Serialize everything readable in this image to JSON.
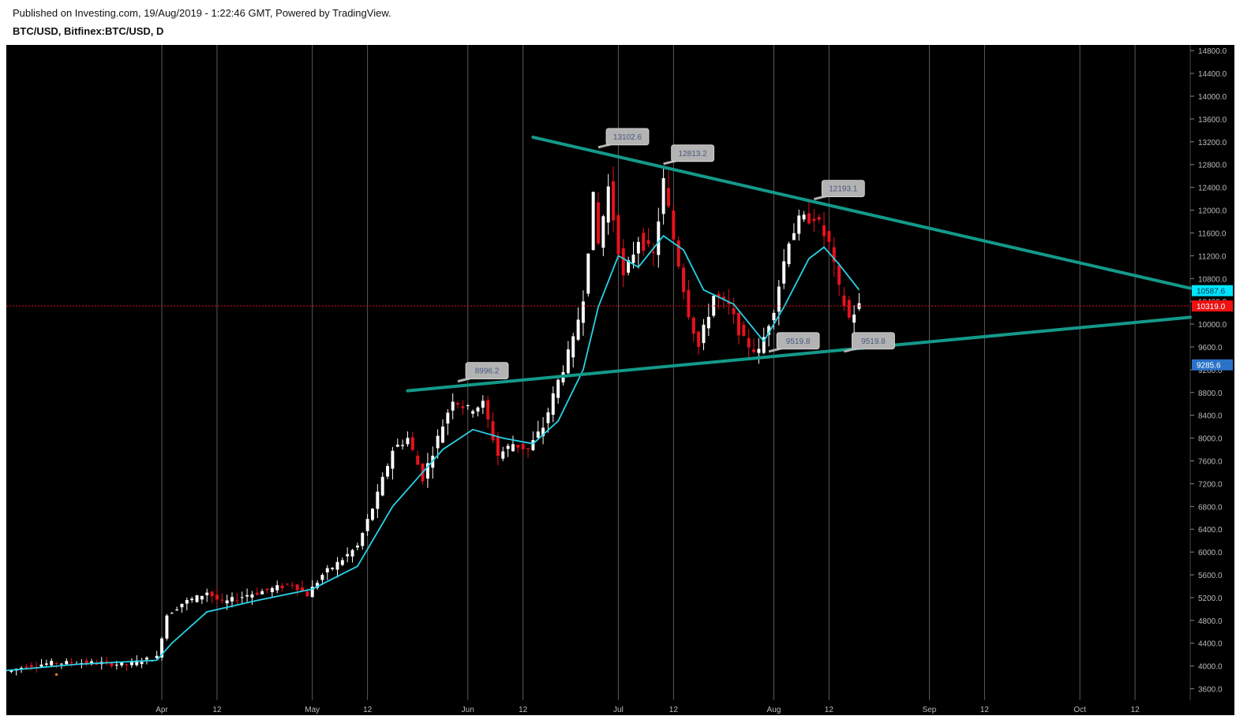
{
  "header": {
    "published": "Published on Investing.com, 19/Aug/2019 - 1:22:46 GMT, Powered by TradingView.",
    "symbol": "BTC/USD, Bitfinex:BTC/USD, D"
  },
  "colors": {
    "background": "#000000",
    "up_candle": "#ffffff",
    "down_candle": "#e8121c",
    "moving_average": "#27d3e6",
    "trendline": "#14998a",
    "price_line": "#e8121c",
    "ma_badge": "#00e5ff",
    "price_badge": "#ee1111",
    "support_badge": "#2a72c8",
    "callout_fill": "#b3b3b3",
    "callout_text": "#4a5a80",
    "grid": "#5a5a5a",
    "axis_text": "#bbbbbb"
  },
  "chart_data": {
    "type": "candlestick",
    "title": "BTC/USD, Bitfinex:BTC/USD, D",
    "ylim": [
      3400,
      14900
    ],
    "y_ticks": [
      3600,
      4000,
      4400,
      4800,
      5200,
      5600,
      6000,
      6400,
      6800,
      7200,
      7600,
      8000,
      8400,
      8800,
      9200,
      9600,
      10000,
      10400,
      10800,
      11200,
      11600,
      12000,
      12400,
      12800,
      13200,
      13600,
      14000,
      14400,
      14800
    ],
    "y_tick_labels": [
      "3600.0",
      "4000.0",
      "4400.0",
      "4800.0",
      "5200.0",
      "5600.0",
      "6000.0",
      "6400.0",
      "6800.0",
      "7200.0",
      "7600.0",
      "8000.0",
      "8400.0",
      "8800.0",
      "9200.0",
      "9600.0",
      "10000.0",
      "10400.0",
      "10800.0",
      "11200.0",
      "11600.0",
      "12000.0",
      "12400.0",
      "12800.0",
      "13200.0",
      "13600.0",
      "14000.0",
      "14400.0",
      "14800.0"
    ],
    "x_start": "2019-03-01",
    "x_end": "2019-10-23",
    "x_ticks": [
      {
        "date": "2019-04-01",
        "label": "Apr"
      },
      {
        "date": "2019-04-12",
        "label": "12"
      },
      {
        "date": "2019-05-01",
        "label": "May"
      },
      {
        "date": "2019-05-12",
        "label": "12"
      },
      {
        "date": "2019-06-01",
        "label": "Jun"
      },
      {
        "date": "2019-06-12",
        "label": "12"
      },
      {
        "date": "2019-07-01",
        "label": "Jul"
      },
      {
        "date": "2019-07-12",
        "label": "12"
      },
      {
        "date": "2019-08-01",
        "label": "Aug"
      },
      {
        "date": "2019-08-12",
        "label": "12"
      },
      {
        "date": "2019-09-01",
        "label": "Sep"
      },
      {
        "date": "2019-09-12",
        "label": "12"
      },
      {
        "date": "2019-10-01",
        "label": "Oct"
      },
      {
        "date": "2019-10-12",
        "label": "12"
      }
    ],
    "closes": [
      {
        "date": "2019-03-01",
        "close": 3900
      },
      {
        "date": "2019-03-05",
        "close": 4000
      },
      {
        "date": "2019-03-10",
        "close": 4050
      },
      {
        "date": "2019-03-15",
        "close": 4060
      },
      {
        "date": "2019-03-20",
        "close": 4050
      },
      {
        "date": "2019-03-25",
        "close": 4020
      },
      {
        "date": "2019-03-28",
        "close": 4100
      },
      {
        "date": "2019-03-31",
        "close": 4150
      },
      {
        "date": "2019-04-02",
        "close": 4900
      },
      {
        "date": "2019-04-05",
        "close": 5100
      },
      {
        "date": "2019-04-08",
        "close": 5200
      },
      {
        "date": "2019-04-10",
        "close": 5300
      },
      {
        "date": "2019-04-13",
        "close": 5100
      },
      {
        "date": "2019-04-18",
        "close": 5250
      },
      {
        "date": "2019-04-23",
        "close": 5350
      },
      {
        "date": "2019-04-27",
        "close": 5450
      },
      {
        "date": "2019-04-30",
        "close": 5250
      },
      {
        "date": "2019-05-03",
        "close": 5600
      },
      {
        "date": "2019-05-06",
        "close": 5800
      },
      {
        "date": "2019-05-10",
        "close": 6100
      },
      {
        "date": "2019-05-14",
        "close": 7000
      },
      {
        "date": "2019-05-17",
        "close": 7800
      },
      {
        "date": "2019-05-20",
        "close": 8000
      },
      {
        "date": "2019-05-23",
        "close": 7300
      },
      {
        "date": "2019-05-26",
        "close": 8000
      },
      {
        "date": "2019-05-29",
        "close": 8700
      },
      {
        "date": "2019-06-01",
        "close": 8500
      },
      {
        "date": "2019-06-04",
        "close": 8600
      },
      {
        "date": "2019-06-07",
        "close": 7700
      },
      {
        "date": "2019-06-10",
        "close": 7900
      },
      {
        "date": "2019-06-13",
        "close": 7800
      },
      {
        "date": "2019-06-16",
        "close": 8200
      },
      {
        "date": "2019-06-19",
        "close": 9000
      },
      {
        "date": "2019-06-22",
        "close": 9700
      },
      {
        "date": "2019-06-24",
        "close": 10500
      },
      {
        "date": "2019-06-26",
        "close": 12200
      },
      {
        "date": "2019-06-27",
        "close": 11400
      },
      {
        "date": "2019-06-29",
        "close": 12400
      },
      {
        "date": "2019-07-02",
        "close": 10800
      },
      {
        "date": "2019-07-05",
        "close": 11500
      },
      {
        "date": "2019-07-08",
        "close": 11200
      },
      {
        "date": "2019-07-10",
        "close": 12500
      },
      {
        "date": "2019-07-12",
        "close": 11500
      },
      {
        "date": "2019-07-15",
        "close": 10200
      },
      {
        "date": "2019-07-17",
        "close": 9600
      },
      {
        "date": "2019-07-20",
        "close": 10500
      },
      {
        "date": "2019-07-23",
        "close": 10300
      },
      {
        "date": "2019-07-26",
        "close": 9700
      },
      {
        "date": "2019-07-29",
        "close": 9500
      },
      {
        "date": "2019-08-01",
        "close": 10300
      },
      {
        "date": "2019-08-04",
        "close": 11500
      },
      {
        "date": "2019-08-06",
        "close": 11800
      },
      {
        "date": "2019-08-09",
        "close": 11900
      },
      {
        "date": "2019-08-12",
        "close": 11400
      },
      {
        "date": "2019-08-14",
        "close": 10600
      },
      {
        "date": "2019-08-16",
        "close": 10100
      },
      {
        "date": "2019-08-18",
        "close": 10319
      }
    ],
    "series": [
      {
        "type": "ema",
        "points": [
          {
            "date": "2019-03-01",
            "value": 3920
          },
          {
            "date": "2019-03-15",
            "value": 4030
          },
          {
            "date": "2019-03-31",
            "value": 4100
          },
          {
            "date": "2019-04-03",
            "value": 4400
          },
          {
            "date": "2019-04-10",
            "value": 4950
          },
          {
            "date": "2019-04-20",
            "value": 5150
          },
          {
            "date": "2019-05-01",
            "value": 5350
          },
          {
            "date": "2019-05-10",
            "value": 5750
          },
          {
            "date": "2019-05-17",
            "value": 6800
          },
          {
            "date": "2019-05-22",
            "value": 7300
          },
          {
            "date": "2019-05-27",
            "value": 7800
          },
          {
            "date": "2019-06-02",
            "value": 8150
          },
          {
            "date": "2019-06-08",
            "value": 8000
          },
          {
            "date": "2019-06-14",
            "value": 7900
          },
          {
            "date": "2019-06-19",
            "value": 8300
          },
          {
            "date": "2019-06-24",
            "value": 9200
          },
          {
            "date": "2019-06-27",
            "value": 10300
          },
          {
            "date": "2019-07-01",
            "value": 11200
          },
          {
            "date": "2019-07-05",
            "value": 11000
          },
          {
            "date": "2019-07-10",
            "value": 11550
          },
          {
            "date": "2019-07-14",
            "value": 11300
          },
          {
            "date": "2019-07-18",
            "value": 10600
          },
          {
            "date": "2019-07-24",
            "value": 10350
          },
          {
            "date": "2019-07-30",
            "value": 9700
          },
          {
            "date": "2019-08-03",
            "value": 10300
          },
          {
            "date": "2019-08-08",
            "value": 11150
          },
          {
            "date": "2019-08-11",
            "value": 11350
          },
          {
            "date": "2019-08-14",
            "value": 11050
          },
          {
            "date": "2019-08-18",
            "value": 10600
          }
        ]
      }
    ],
    "trendlines": [
      {
        "from": {
          "date": "2019-06-14",
          "value": 13280
        },
        "to": {
          "date": "2019-10-23",
          "value": 10630
        }
      },
      {
        "from": {
          "date": "2019-05-20",
          "value": 8830
        },
        "to": {
          "date": "2019-10-23",
          "value": 10120
        }
      }
    ],
    "price_line": 10319.0,
    "badges": [
      {
        "value": 10587.6,
        "label": "10587.6",
        "kind": "ma"
      },
      {
        "value": 10319.0,
        "label": "10319.0",
        "kind": "price"
      },
      {
        "value": 9285.6,
        "label": "9285.6",
        "kind": "support"
      }
    ],
    "callouts": [
      {
        "date": "2019-06-27",
        "value": 13102.6,
        "label": "13102.6"
      },
      {
        "date": "2019-07-10",
        "value": 12813.2,
        "label": "12813.2"
      },
      {
        "date": "2019-08-09",
        "value": 12193.1,
        "label": "12193.1"
      },
      {
        "date": "2019-05-30",
        "value": 8996.2,
        "label": "8996.2"
      },
      {
        "date": "2019-07-31",
        "value": 9519.8,
        "label": "9519.8"
      },
      {
        "date": "2019-08-15",
        "value": 9519.8,
        "label": "9519.8"
      }
    ],
    "extra_marker": {
      "date": "2019-03-11",
      "value": 3850
    }
  }
}
